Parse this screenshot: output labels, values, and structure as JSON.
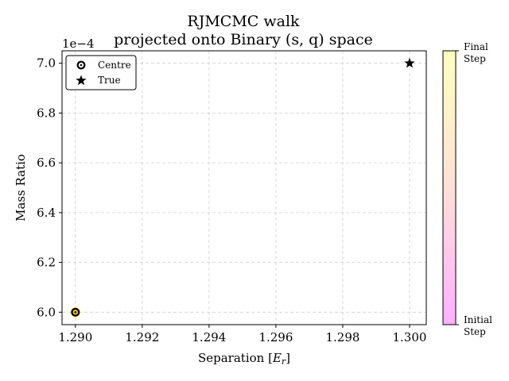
{
  "chart_data": {
    "type": "scatter",
    "title_line1": "RJMCMC walk",
    "title_line2": "projected onto Binary (s, q) space",
    "xlabel_text": "Separation [",
    "xlabel_math": "E",
    "xlabel_sub": "r",
    "xlabel_close": "]",
    "ylabel": "Mass Ratio",
    "y_offset_label": "1e−4",
    "xlim": [
      1.2896,
      1.3005
    ],
    "ylim": [
      5.95,
      7.05
    ],
    "x_ticks": [
      1.29,
      1.292,
      1.294,
      1.296,
      1.298,
      1.3
    ],
    "x_tick_labels": [
      "1.290",
      "1.292",
      "1.294",
      "1.296",
      "1.298",
      "1.300"
    ],
    "y_ticks": [
      6.0,
      6.2,
      6.4,
      6.6,
      6.8,
      7.0
    ],
    "y_tick_labels": [
      "6.0",
      "6.2",
      "6.4",
      "6.6",
      "6.8",
      "7.0"
    ],
    "grid": true,
    "legend_position": "top-left",
    "series": [
      {
        "name": "Centre",
        "marker": "ring",
        "color": "#000000",
        "points": [
          {
            "x": 1.29,
            "y": 6.0
          }
        ]
      },
      {
        "name": "True",
        "marker": "star",
        "color": "#000000",
        "points": [
          {
            "x": 1.3,
            "y": 7.0
          }
        ]
      }
    ],
    "walk_points": [
      {
        "x": 1.29,
        "y": 6.0
      }
    ],
    "walk_point_color": "#f5d000",
    "colorbar": {
      "top_label_line1": "Final",
      "top_label_line2": "Step",
      "bottom_label_line1": "Initial",
      "bottom_label_line2": "Step",
      "color_top": "#ffffc0",
      "color_mid": "#ffe0d8",
      "color_bottom": "#ffb0ff"
    }
  }
}
